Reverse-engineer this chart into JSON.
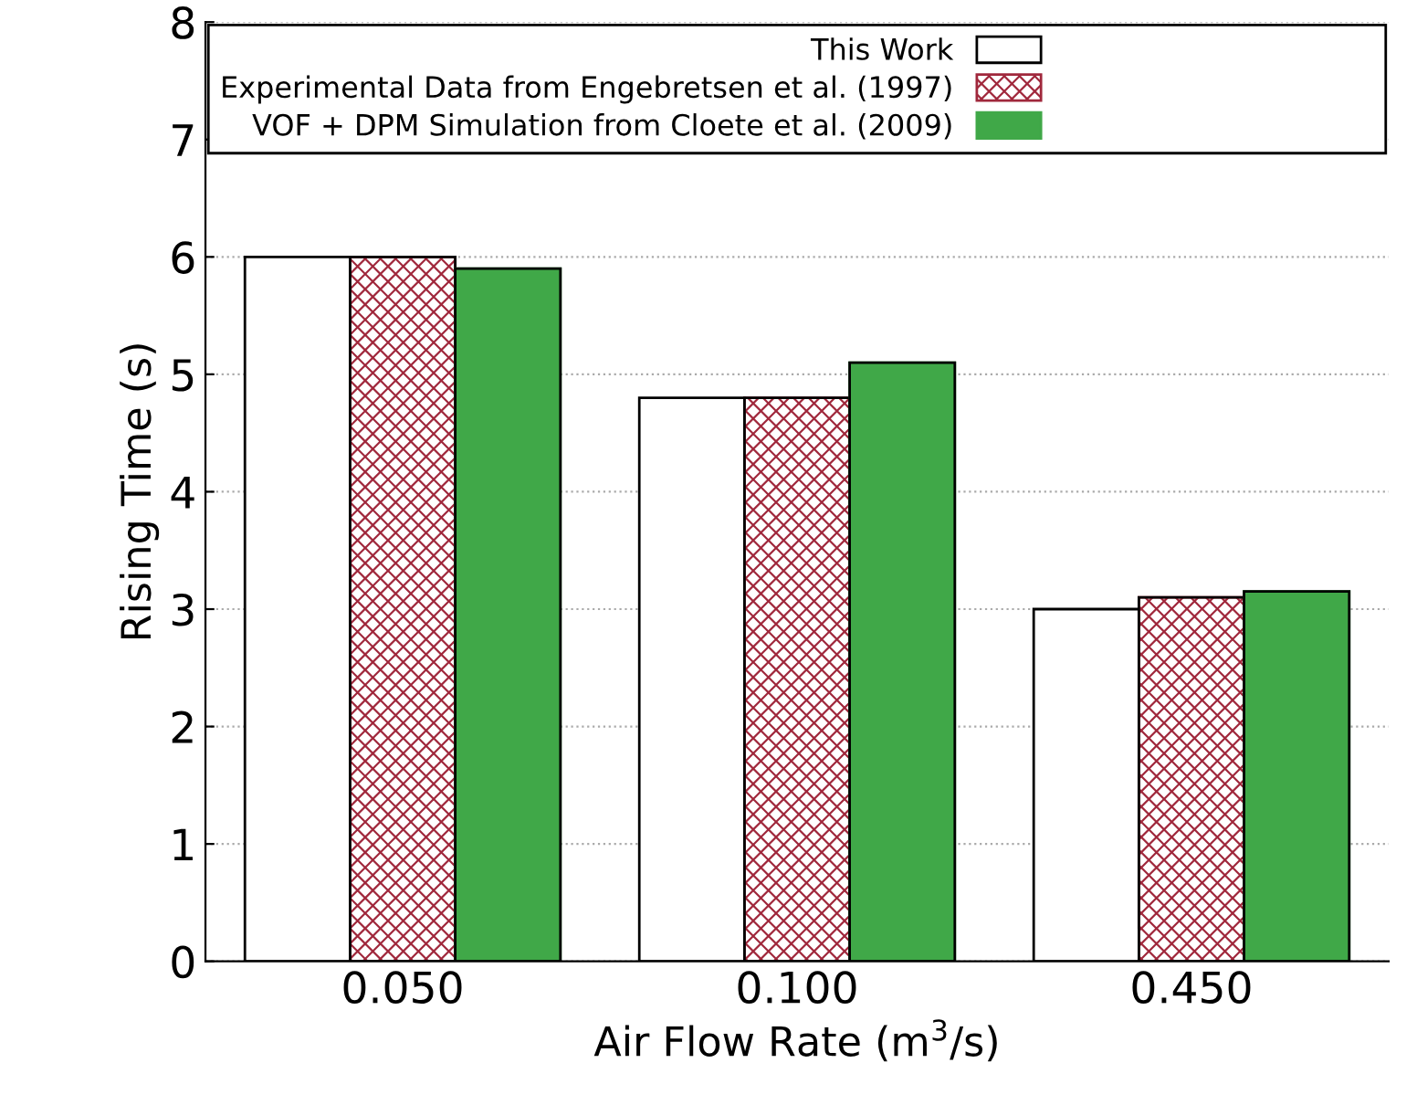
{
  "chart_data": {
    "type": "bar",
    "xlabel": "Air Flow Rate (m$^{3}$/s)",
    "ylabel": "Rising Time (s)",
    "categories": [
      "0.050",
      "0.100",
      "0.450"
    ],
    "series": [
      {
        "name": "This Work",
        "color": "#ffffff",
        "values": [
          6.0,
          4.8,
          3.0
        ]
      },
      {
        "name": "Experimental Data from Engebretsen et al. (1997)",
        "color": "#a0283c",
        "values": [
          6.0,
          4.8,
          3.1
        ]
      },
      {
        "name": "VOF + DPM Simulation from Cloete et al. (2009)",
        "color": "#40a848",
        "values": [
          5.9,
          5.1,
          3.15
        ]
      }
    ],
    "ylim": [
      0,
      8
    ],
    "yticks": [
      0,
      1,
      2,
      3,
      4,
      5,
      6,
      7,
      8
    ],
    "grid": "y",
    "legend": "top"
  }
}
